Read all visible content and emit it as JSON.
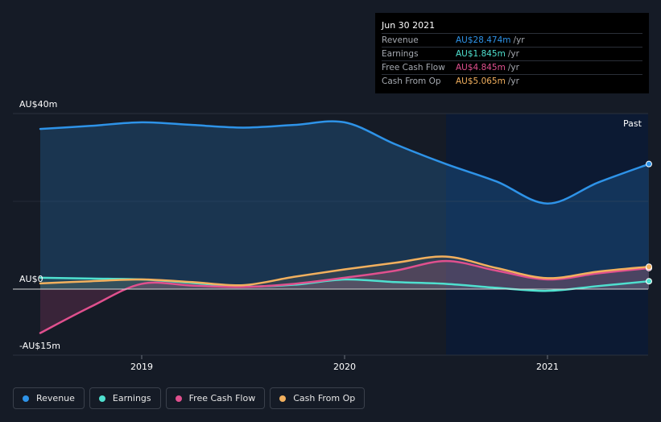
{
  "tooltip": {
    "date": "Jun 30 2021",
    "rows": [
      {
        "label": "Revenue",
        "value": "AU$28.474m",
        "unit": "/yr",
        "color": "#2e93e8"
      },
      {
        "label": "Earnings",
        "value": "AU$1.845m",
        "unit": "/yr",
        "color": "#4fe0cf"
      },
      {
        "label": "Free Cash Flow",
        "value": "AU$4.845m",
        "unit": "/yr",
        "color": "#e0508e"
      },
      {
        "label": "Cash From Op",
        "value": "AU$5.065m",
        "unit": "/yr",
        "color": "#f2b05e"
      }
    ]
  },
  "past_label": "Past",
  "legend": [
    {
      "label": "Revenue",
      "color": "#2e93e8"
    },
    {
      "label": "Earnings",
      "color": "#4fe0cf"
    },
    {
      "label": "Free Cash Flow",
      "color": "#e0508e"
    },
    {
      "label": "Cash From Op",
      "color": "#f2b05e"
    }
  ],
  "chart_data": {
    "type": "area",
    "y_tick_labels": [
      "AU$40m",
      "AU$0",
      "-AU$15m"
    ],
    "ylim": [
      -15,
      40
    ],
    "xlim": [
      2018.5,
      2021.5
    ],
    "x_tick_labels": [
      "2019",
      "2020",
      "2021"
    ],
    "x_ticks": [
      2019,
      2020,
      2021
    ],
    "past_region_start": 2020.5,
    "grid": true,
    "legend_position": "bottom-left",
    "series": [
      {
        "name": "Revenue",
        "color": "#2e93e8",
        "x": [
          2018.5,
          2018.75,
          2019.0,
          2019.25,
          2019.5,
          2019.75,
          2020.0,
          2020.25,
          2020.5,
          2020.75,
          2021.0,
          2021.25,
          2021.5
        ],
        "y": [
          36.5,
          37.2,
          38.0,
          37.4,
          36.8,
          37.4,
          38.0,
          33.0,
          28.5,
          24.5,
          19.5,
          24.3,
          28.5
        ]
      },
      {
        "name": "Earnings",
        "color": "#4fe0cf",
        "x": [
          2018.5,
          2018.75,
          2019.0,
          2019.25,
          2019.5,
          2019.75,
          2020.0,
          2020.25,
          2020.5,
          2020.75,
          2021.0,
          2021.25,
          2021.5
        ],
        "y": [
          2.6,
          2.4,
          2.2,
          1.4,
          0.6,
          1.0,
          2.2,
          1.6,
          1.2,
          0.3,
          -0.4,
          0.7,
          1.8
        ]
      },
      {
        "name": "Free Cash Flow",
        "color": "#e0508e",
        "x": [
          2018.5,
          2018.75,
          2019.0,
          2019.25,
          2019.5,
          2019.75,
          2020.0,
          2020.25,
          2020.5,
          2020.75,
          2021.0,
          2021.25,
          2021.5
        ],
        "y": [
          -10.0,
          -4.0,
          1.2,
          0.8,
          0.5,
          1.2,
          2.6,
          4.2,
          6.4,
          4.2,
          2.2,
          3.6,
          4.8
        ]
      },
      {
        "name": "Cash From Op",
        "color": "#f2b05e",
        "x": [
          2018.5,
          2018.75,
          2019.0,
          2019.25,
          2019.5,
          2019.75,
          2020.0,
          2020.25,
          2020.5,
          2020.75,
          2021.0,
          2021.25,
          2021.5
        ],
        "y": [
          1.3,
          1.8,
          2.2,
          1.6,
          0.9,
          2.8,
          4.5,
          6.0,
          7.4,
          4.8,
          2.5,
          4.0,
          5.1
        ]
      }
    ]
  }
}
